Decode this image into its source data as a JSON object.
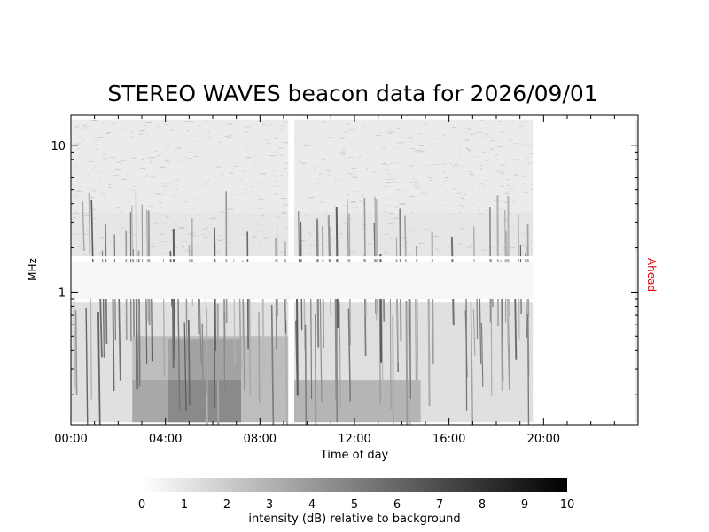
{
  "chart_data": {
    "type": "heatmap",
    "title": "STEREO WAVES beacon data for 2026/09/01",
    "xlabel": "Time of day",
    "ylabel": "MHz",
    "right_label": "Ahead",
    "right_label_color": "#e00000",
    "x_unit": "hours",
    "xlim": [
      0,
      24
    ],
    "x_ticks": [
      {
        "value": 0,
        "label": "00:00"
      },
      {
        "value": 4,
        "label": "04:00"
      },
      {
        "value": 8,
        "label": "08:00"
      },
      {
        "value": 12,
        "label": "12:00"
      },
      {
        "value": 16,
        "label": "16:00"
      },
      {
        "value": 20,
        "label": "20:00"
      }
    ],
    "y_scale": "log",
    "ylim": [
      0.125,
      16
    ],
    "y_ticks": [
      {
        "value": 1,
        "label": "1"
      },
      {
        "value": 10,
        "label": "10"
      }
    ],
    "data_gaps_hours": [
      [
        9.2,
        9.45
      ],
      [
        19.55,
        23.9
      ]
    ],
    "intensity_blocks": [
      {
        "t0": 0,
        "t1": 19.55,
        "f0": 0.13,
        "f1": 0.85,
        "db": 1.2
      },
      {
        "t0": 2.6,
        "t1": 9.2,
        "f0": 0.13,
        "f1": 0.5,
        "db": 2.6
      },
      {
        "t0": 4.1,
        "t1": 7.2,
        "f0": 0.13,
        "f1": 0.48,
        "db": 3.6
      },
      {
        "t0": 2.6,
        "t1": 4.1,
        "f0": 0.13,
        "f1": 0.25,
        "db": 3.4
      },
      {
        "t0": 4.1,
        "t1": 7.2,
        "f0": 0.13,
        "f1": 0.25,
        "db": 4.6
      },
      {
        "t0": 9.45,
        "t1": 14.8,
        "f0": 0.13,
        "f1": 0.25,
        "db": 2.9
      },
      {
        "t0": 0,
        "t1": 19.55,
        "f0": 0.9,
        "f1": 1.6,
        "db": 0.9
      },
      {
        "t0": 0,
        "t1": 19.55,
        "f0": 1.75,
        "f1": 3.5,
        "db": 1.0
      },
      {
        "t0": 0,
        "t1": 19.55,
        "f0": 3.5,
        "f1": 15,
        "db": 0.8
      }
    ],
    "colorbar": {
      "min": 0,
      "max": 10,
      "ticks": [
        "0",
        "1",
        "2",
        "3",
        "4",
        "5",
        "6",
        "7",
        "8",
        "9",
        "10"
      ],
      "label": "intensity (dB) relative to background",
      "color_low": "#ffffff",
      "color_high": "#000000"
    }
  }
}
